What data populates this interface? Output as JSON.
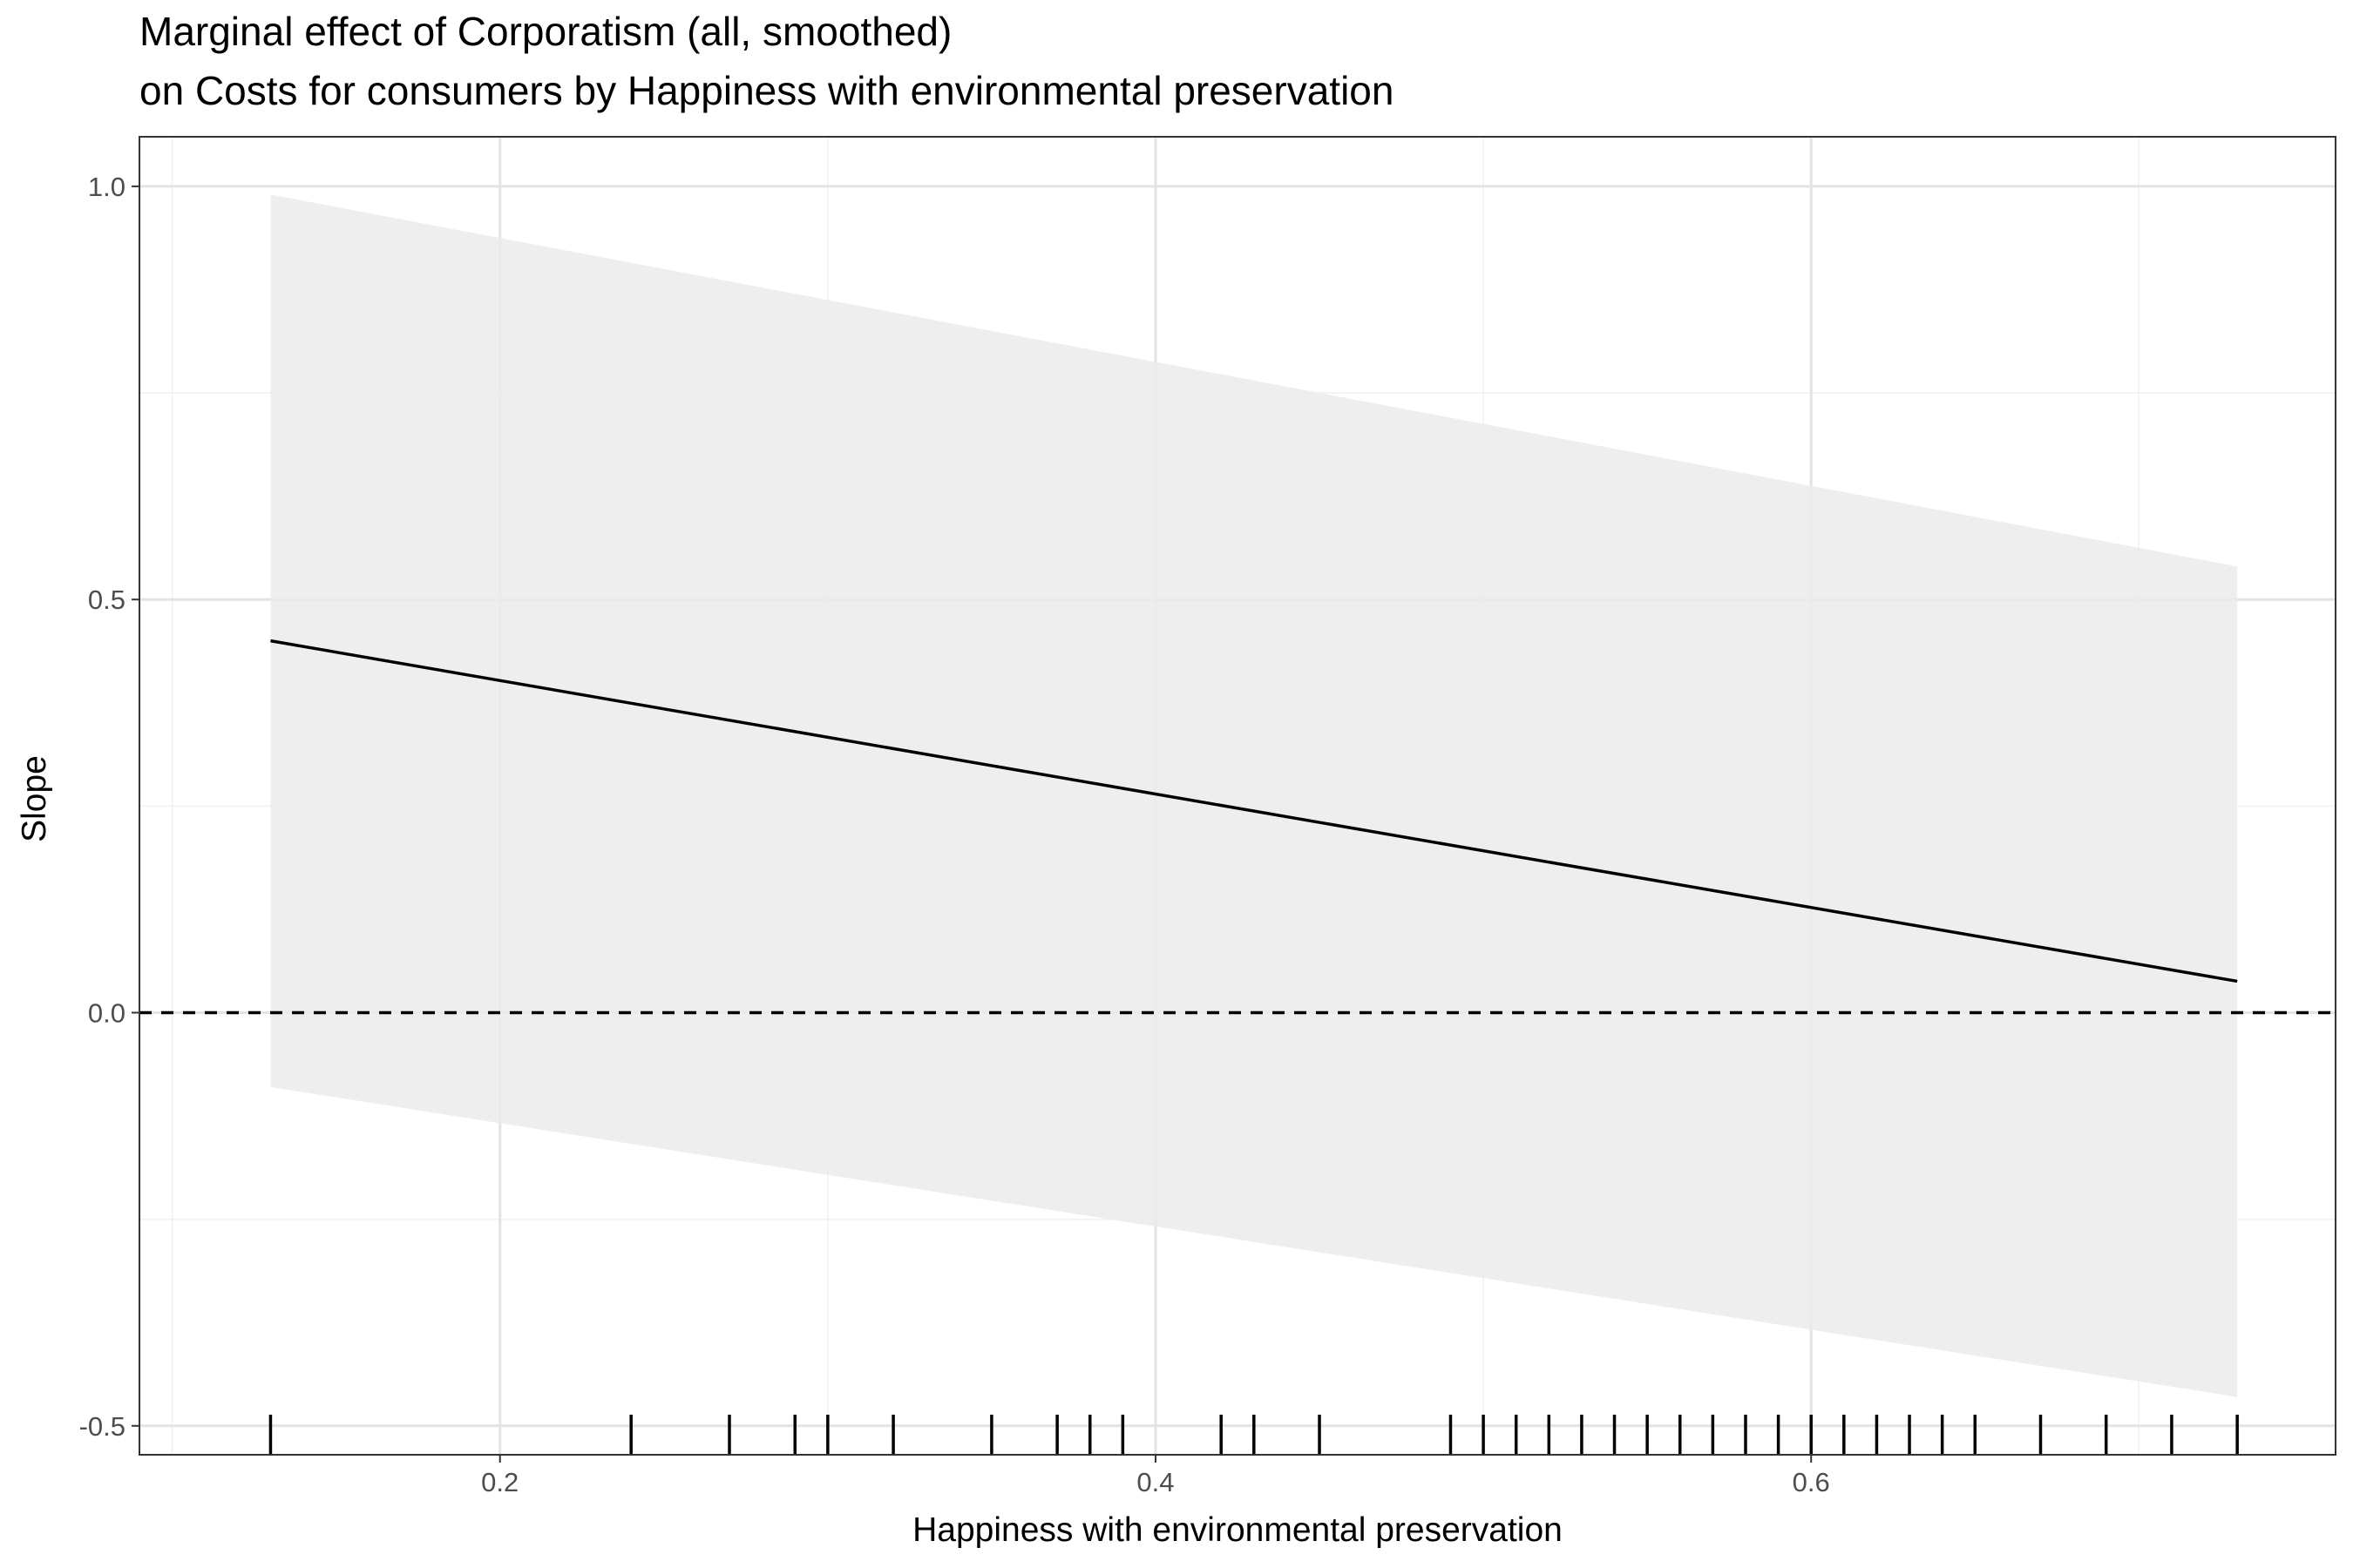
{
  "chart_data": {
    "type": "line",
    "title": "Marginal effect of Corporatism (all, smoothed)",
    "subtitle": "on Costs for consumers by Happiness with environmental preservation",
    "xlabel": "Happiness with environmental preservation",
    "ylabel": "Slope",
    "xlim": [
      0.09,
      0.76
    ],
    "ylim": [
      -0.535,
      1.06
    ],
    "x_ticks": [
      0.2,
      0.4,
      0.6
    ],
    "x_tick_labels": [
      "0.2",
      "0.4",
      "0.6"
    ],
    "x_minor_ticks": [
      0.1,
      0.3,
      0.5,
      0.7
    ],
    "y_ticks": [
      -0.5,
      0.0,
      0.5,
      1.0
    ],
    "y_tick_labels": [
      "-0.5",
      "0.0",
      "0.5",
      "1.0"
    ],
    "y_minor_ticks": [
      -0.25,
      0.25,
      0.75
    ],
    "grid": true,
    "series": [
      {
        "x": [
          0.13,
          0.73
        ],
        "estimate": [
          0.45,
          0.038
        ],
        "ci_lower": [
          -0.09,
          -0.465
        ],
        "ci_upper": [
          0.99,
          0.54
        ]
      }
    ],
    "reference_line": {
      "y": 0,
      "style": "dashed"
    },
    "rug_x": [
      0.13,
      0.24,
      0.27,
      0.29,
      0.3,
      0.32,
      0.35,
      0.37,
      0.38,
      0.39,
      0.42,
      0.43,
      0.45,
      0.49,
      0.5,
      0.51,
      0.52,
      0.53,
      0.54,
      0.55,
      0.56,
      0.57,
      0.58,
      0.59,
      0.6,
      0.61,
      0.62,
      0.63,
      0.64,
      0.65,
      0.67,
      0.69,
      0.71,
      0.73
    ],
    "colors": {
      "ribbon": "#ebebeb",
      "line": "#000000",
      "grid_major": "#e3e3e3",
      "grid_minor": "#f1f1f1",
      "panel_border": "#333333",
      "tick_label": "#4d4d4d"
    }
  }
}
